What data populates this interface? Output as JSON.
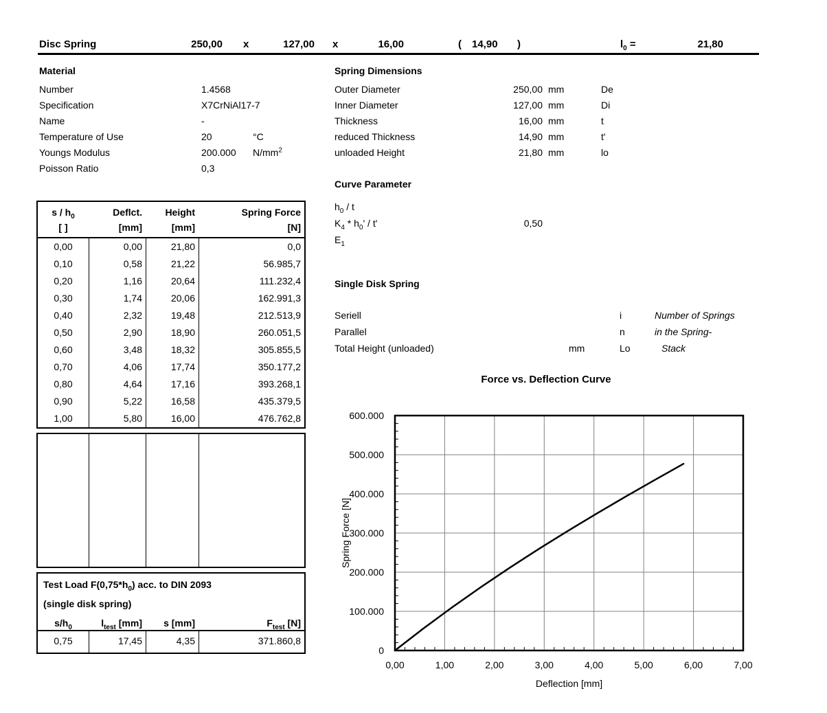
{
  "header": {
    "title": "Disc Spring",
    "outer_diameter": "250,00",
    "times1": "x",
    "inner_diameter": "127,00",
    "times2": "x",
    "thickness": "16,00",
    "paren_open": "(",
    "reduced_thickness": "14,90",
    "paren_close": ")",
    "l0_label": [
      {
        "t": "l"
      },
      {
        "sub": "0"
      },
      {
        "t": " ="
      }
    ],
    "l0_value": "21,80"
  },
  "material": {
    "heading": "Material",
    "rows": [
      {
        "label": "Number",
        "value": "1.4568",
        "unit": []
      },
      {
        "label": "Specification",
        "value": "X7CrNiAl17-7",
        "unit": []
      },
      {
        "label": "Name",
        "value": "-",
        "unit": []
      },
      {
        "label": "Temperature of Use",
        "value": "20",
        "unit": [
          {
            "t": "°C"
          }
        ]
      },
      {
        "label": "Youngs Modulus",
        "value": "200.000",
        "unit": [
          {
            "t": "N/mm"
          },
          {
            "sup": "2"
          }
        ]
      },
      {
        "label": "Poisson Ratio",
        "value": "0,3",
        "unit": []
      }
    ]
  },
  "dimensions": {
    "heading": "Spring Dimensions",
    "rows": [
      {
        "label": "Outer Diameter",
        "value": "250,00",
        "unit": "mm",
        "symbol": "De"
      },
      {
        "label": "Inner Diameter",
        "value": "127,00",
        "unit": "mm",
        "symbol": "Di"
      },
      {
        "label": "Thickness",
        "value": "16,00",
        "unit": "mm",
        "symbol": "t"
      },
      {
        "label": "reduced Thickness",
        "value": "14,90",
        "unit": "mm",
        "symbol": "t'"
      },
      {
        "label": "unloaded Height",
        "value": "21,80",
        "unit": "mm",
        "symbol": "lo"
      }
    ]
  },
  "curve_parameter": {
    "heading": "Curve Parameter",
    "rows": [
      {
        "label": [
          {
            "t": "h"
          },
          {
            "sub": "0"
          },
          {
            "t": " / t"
          }
        ],
        "value": ""
      },
      {
        "label": [
          {
            "t": "K"
          },
          {
            "sub": "4"
          },
          {
            "t": " * h"
          },
          {
            "sub": "0"
          },
          {
            "t": "' / t'"
          }
        ],
        "value": "0,50"
      },
      {
        "label": [
          {
            "t": "E"
          },
          {
            "sub": "1"
          }
        ],
        "value": ""
      }
    ]
  },
  "single_disk": {
    "heading": "Single Disk Spring",
    "rows": [
      {
        "label": "Seriell",
        "unit": "",
        "symbol": "i",
        "note": "Number of Springs"
      },
      {
        "label": "Parallel",
        "unit": "",
        "symbol": "n",
        "note": "in the Spring-"
      },
      {
        "label": "Total Height (unloaded)",
        "unit": "mm",
        "symbol": "Lo",
        "note": "Stack"
      }
    ]
  },
  "deflection_table": {
    "col_headers": [
      [
        {
          "t": "s / h"
        },
        {
          "sub": "0"
        }
      ],
      [
        {
          "t": "Deflct."
        }
      ],
      [
        {
          "t": "Height"
        }
      ],
      [
        {
          "t": "Spring Force"
        }
      ]
    ],
    "col_units": [
      [
        {
          "t": "[ ]"
        }
      ],
      [
        {
          "t": "[mm]"
        }
      ],
      [
        {
          "t": "[mm]"
        }
      ],
      [
        {
          "t": "[N]"
        }
      ]
    ],
    "rows": [
      [
        "0,00",
        "0,00",
        "21,80",
        "0,0"
      ],
      [
        "0,10",
        "0,58",
        "21,22",
        "56.985,7"
      ],
      [
        "0,20",
        "1,16",
        "20,64",
        "111.232,4"
      ],
      [
        "0,30",
        "1,74",
        "20,06",
        "162.991,3"
      ],
      [
        "0,40",
        "2,32",
        "19,48",
        "212.513,9"
      ],
      [
        "0,50",
        "2,90",
        "18,90",
        "260.051,5"
      ],
      [
        "0,60",
        "3,48",
        "18,32",
        "305.855,5"
      ],
      [
        "0,70",
        "4,06",
        "17,74",
        "350.177,2"
      ],
      [
        "0,80",
        "4,64",
        "17,16",
        "393.268,1"
      ],
      [
        "0,90",
        "5,22",
        "16,58",
        "435.379,5"
      ],
      [
        "1,00",
        "5,80",
        "16,00",
        "476.762,8"
      ]
    ]
  },
  "test_load": {
    "title": [
      {
        "t": "Test Load F(0,75*h"
      },
      {
        "sub": "0"
      },
      {
        "t": ") acc. to DIN 2093"
      }
    ],
    "subtitle": "(single disk spring)",
    "col_headers": [
      [
        {
          "t": "s/h"
        },
        {
          "sub": "0"
        }
      ],
      [
        {
          "t": "l"
        },
        {
          "sub": "test"
        },
        {
          "t": " [mm]"
        }
      ],
      [
        {
          "t": "s [mm]"
        }
      ],
      [
        {
          "t": "F"
        },
        {
          "sub": "test"
        },
        {
          "t": " [N]"
        }
      ]
    ],
    "row": [
      "0,75",
      "17,45",
      "4,35",
      "371.860,8"
    ]
  },
  "chart_data": {
    "type": "line",
    "title": "Force vs. Deflection Curve",
    "xlabel": "Deflection [mm]",
    "ylabel": "Spring Force [N]",
    "x": [
      0,
      0.58,
      1.16,
      1.74,
      2.32,
      2.9,
      3.48,
      4.06,
      4.64,
      5.22,
      5.8
    ],
    "y": [
      0,
      56985.7,
      111232.4,
      162991.3,
      212513.9,
      260051.5,
      305855.5,
      350177.2,
      393268.1,
      435379.5,
      476762.8
    ],
    "xlim": [
      0,
      7
    ],
    "ylim": [
      0,
      600000
    ],
    "x_major": 1,
    "y_major": 100000,
    "x_minor": 0.2,
    "y_minor": 20000,
    "x_tick_labels": [
      "0,00",
      "1,00",
      "2,00",
      "3,00",
      "4,00",
      "5,00",
      "6,00",
      "7,00"
    ],
    "y_tick_labels": [
      "600.000",
      "500.000",
      "400.000",
      "300.000",
      "200.000",
      "100.000",
      "0"
    ],
    "grid": true,
    "legend": "none",
    "line_color": "#000000",
    "grid_color": "#808080",
    "frame_color": "#000000"
  }
}
